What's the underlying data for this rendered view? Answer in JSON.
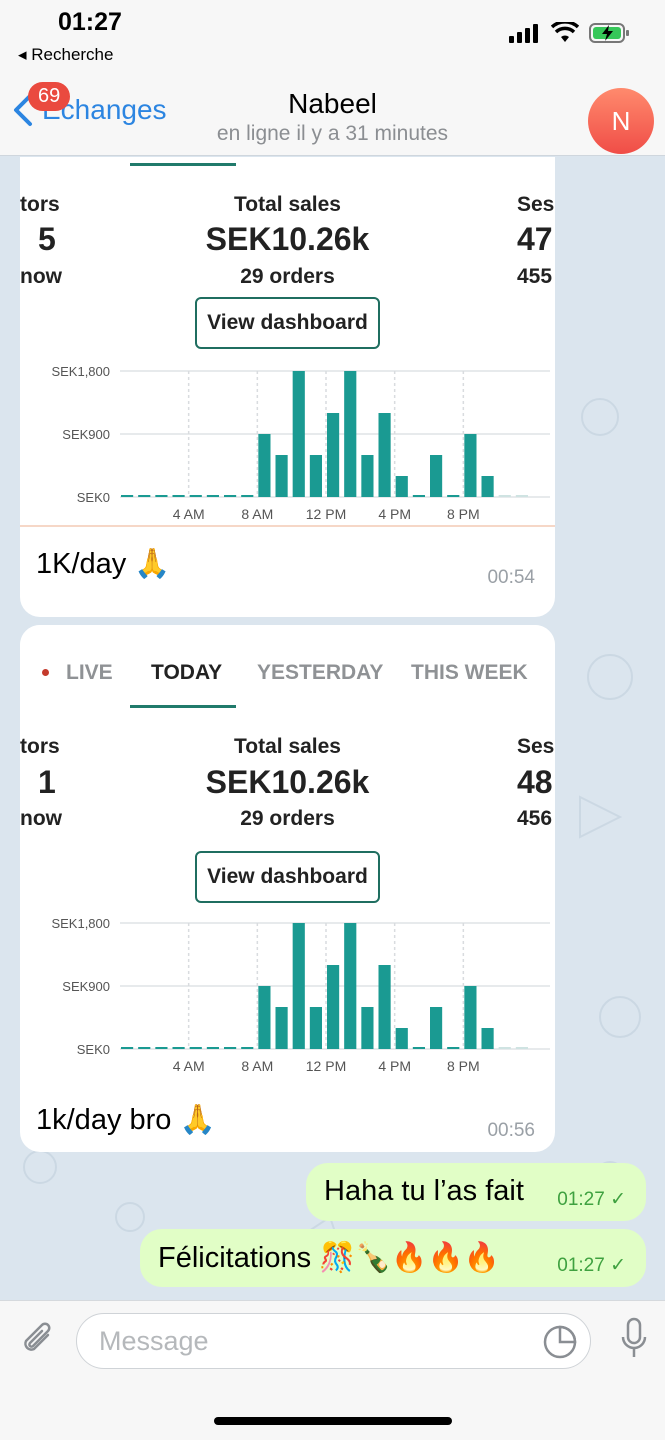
{
  "status_bar": {
    "time": "01:27",
    "back_app": "◂ Recherche"
  },
  "header": {
    "back_label": "Échanges",
    "unread_badge": "69",
    "contact_name": "Nabeel",
    "last_seen": "en ligne il y a 31 minutes",
    "avatar_initial": "N"
  },
  "messages": [
    {
      "screenshot": {
        "tabs": [],
        "visitors_label_partial": "tors",
        "visitors_value": "5",
        "visitors_sub_partial": "now",
        "total_sales_label": "Total sales",
        "total_sales_value": "SEK10.26k",
        "orders": "29 orders",
        "sessions_label_partial": "Ses",
        "sessions_value_partial": "47",
        "sessions_sub_partial": "455",
        "button": "View dashboard"
      },
      "text": "1K/day 🙏",
      "time": "00:54"
    },
    {
      "screenshot": {
        "tabs": [
          "LIVE",
          "TODAY",
          "YESTERDAY",
          "THIS WEEK"
        ],
        "active_tab": "TODAY",
        "visitors_label_partial": "tors",
        "visitors_value": "1",
        "visitors_sub_partial": "now",
        "total_sales_label": "Total sales",
        "total_sales_value": "SEK10.26k",
        "orders": "29 orders",
        "sessions_label_partial": "Ses",
        "sessions_value_partial": "48",
        "sessions_sub_partial": "456",
        "button": "View dashboard"
      },
      "text": "1k/day bro 🙏",
      "time": "00:56"
    },
    {
      "outgoing": true,
      "text": "Haha tu l’as fait",
      "time": "01:27",
      "status": "✓"
    },
    {
      "outgoing": true,
      "text": "Félicitations 🎊🍾🔥🔥🔥",
      "time": "01:27",
      "status": "✓"
    }
  ],
  "input": {
    "placeholder": "Message"
  },
  "chart_data": {
    "type": "bar",
    "categories": [
      "12 AM",
      "1 AM",
      "2 AM",
      "3 AM",
      "4 AM",
      "5 AM",
      "6 AM",
      "7 AM",
      "8 AM",
      "9 AM",
      "10 AM",
      "11 AM",
      "12 PM",
      "1 PM",
      "2 PM",
      "3 PM",
      "4 PM",
      "5 PM",
      "6 PM",
      "7 PM",
      "8 PM",
      "9 PM",
      "10 PM",
      "11 PM"
    ],
    "x_tick_labels": [
      "4 AM",
      "8 AM",
      "12 PM",
      "4 PM",
      "8 PM"
    ],
    "y_tick_labels": [
      "SEK0",
      "SEK900",
      "SEK1,800"
    ],
    "values": [
      0,
      0,
      0,
      0,
      0,
      0,
      0,
      0,
      900,
      600,
      1800,
      600,
      1200,
      1800,
      600,
      1200,
      300,
      0,
      600,
      0,
      900,
      300,
      0,
      0
    ],
    "ylim": [
      0,
      1800
    ],
    "color": "#1a9a92",
    "grid": true
  },
  "colors": {
    "accent": "#2c85e1",
    "badge": "#ea4a3f",
    "outgoing_bubble": "#e1fec6",
    "tab_underline": "#207a6b"
  }
}
